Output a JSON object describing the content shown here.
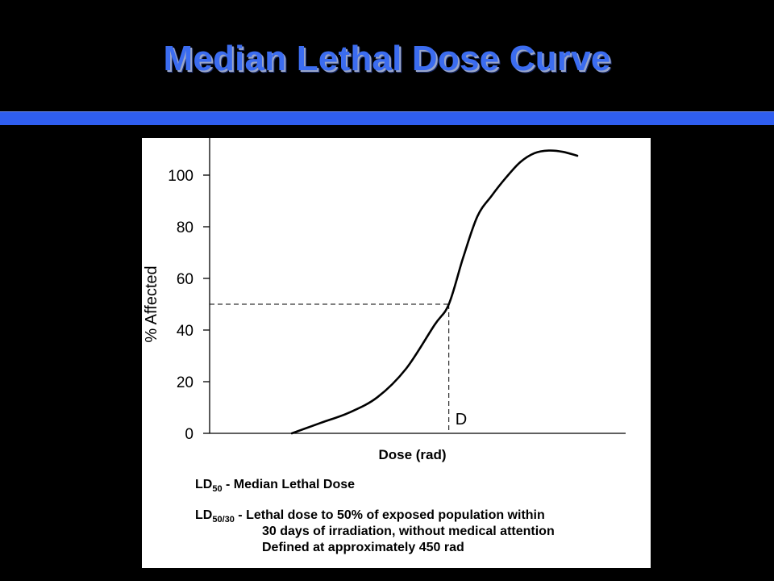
{
  "slide": {
    "title": "Median Lethal Dose Curve"
  },
  "chart_data": {
    "type": "line",
    "ylabel": "% Affected",
    "xlabel": "Dose (rad)",
    "ylim": [
      0,
      110
    ],
    "yticks": [
      0,
      20,
      40,
      60,
      80,
      100
    ],
    "x_ticks_shown": false,
    "grid": false,
    "series": [
      {
        "x": [
          0,
          10,
          20,
          30,
          40,
          50,
          55,
          60,
          65,
          70,
          75,
          80,
          85,
          90,
          95,
          100
        ],
        "values": [
          0,
          4,
          8,
          14,
          25,
          42,
          50,
          68,
          84,
          92,
          99,
          105,
          108.5,
          109.5,
          109,
          107.5
        ]
      }
    ],
    "reference_point": {
      "x": 55,
      "y": 50,
      "label": "D",
      "style": "dashed"
    }
  },
  "notes": {
    "ld50": {
      "abbr": "LD",
      "sub": "50",
      "text": " - Median Lethal Dose"
    },
    "ld5030": {
      "abbr": "LD",
      "sub": "50/30",
      "text": " - Lethal dose to 50% of exposed population within",
      "line2": "30 days of irradiation, without medical attention",
      "line3": "Defined at approximately 450 rad"
    }
  }
}
